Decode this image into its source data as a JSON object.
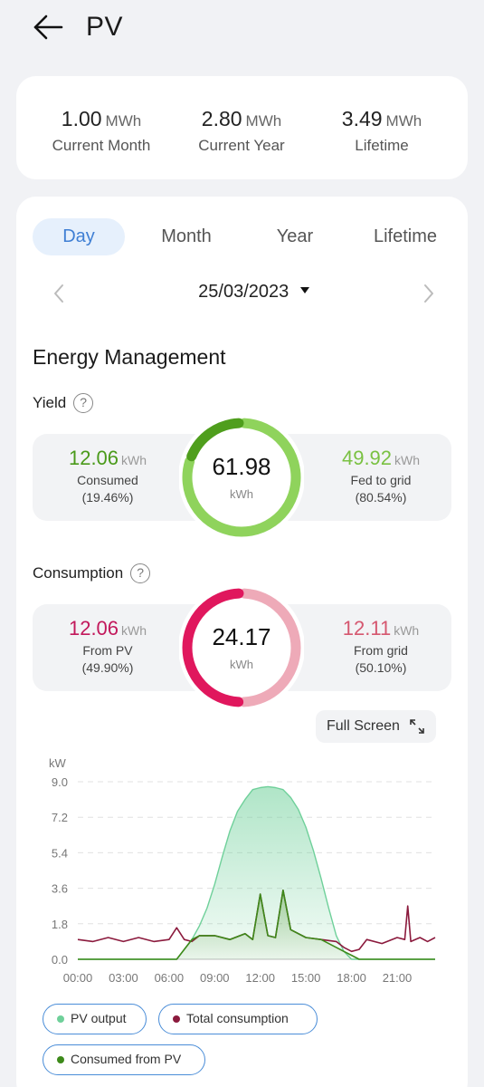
{
  "header": {
    "title": "PV"
  },
  "summary": [
    {
      "value": "1.00",
      "unit": "MWh",
      "label": "Current Month"
    },
    {
      "value": "2.80",
      "unit": "MWh",
      "label": "Current Year"
    },
    {
      "value": "3.49",
      "unit": "MWh",
      "label": "Lifetime"
    }
  ],
  "tabs": [
    "Day",
    "Month",
    "Year",
    "Lifetime"
  ],
  "active_tab": "Day",
  "date": "25/03/2023",
  "section_title": "Energy Management",
  "yield": {
    "title": "Yield",
    "total": "61.98",
    "unit": "kWh",
    "left": {
      "value": "12.06",
      "unit": "kWh",
      "label": "Consumed",
      "pct": "(19.46%)",
      "color": "#4a9a1a"
    },
    "right": {
      "value": "49.92",
      "unit": "kWh",
      "label": "Fed to grid",
      "pct": "(80.54%)",
      "color": "#7ac142"
    },
    "ring_fraction_left": 0.1946,
    "colors": {
      "dark": "#4f9e1d",
      "light": "#8fd35c"
    }
  },
  "consumption": {
    "title": "Consumption",
    "total": "24.17",
    "unit": "kWh",
    "left": {
      "value": "12.06",
      "unit": "kWh",
      "label": "From PV",
      "pct": "(49.90%)",
      "color": "#c2185b"
    },
    "right": {
      "value": "12.11",
      "unit": "kWh",
      "label": "From grid",
      "pct": "(50.10%)",
      "color": "#d5576f"
    },
    "ring_fraction_left": 0.499,
    "colors": {
      "dark": "#e0175d",
      "light": "#eeaab8"
    }
  },
  "full_screen_label": "Full Screen",
  "legend": [
    {
      "label": "PV output",
      "color": "#6fd09a"
    },
    {
      "label": "Total consumption",
      "color": "#8b1a3d"
    },
    {
      "label": "Consumed from PV",
      "color": "#3d8a1a"
    }
  ],
  "chart_data": {
    "type": "line",
    "ylabel": "kW",
    "yticks": [
      "9.0",
      "7.2",
      "5.4",
      "3.6",
      "1.8",
      "0.0"
    ],
    "ylim": [
      0,
      9
    ],
    "xticks": [
      "00:00",
      "03:00",
      "06:00",
      "09:00",
      "12:00",
      "15:00",
      "18:00",
      "21:00"
    ],
    "xlim": [
      0,
      23.5
    ],
    "grid": true,
    "series": [
      {
        "name": "PV output",
        "x": [
          0,
          6.5,
          7,
          7.5,
          8,
          8.5,
          9,
          9.5,
          10,
          10.5,
          11,
          11.5,
          12,
          12.5,
          13,
          13.5,
          14,
          14.5,
          15,
          15.5,
          16,
          16.5,
          17,
          17.5,
          18,
          23.5
        ],
        "y": [
          0,
          0,
          0.5,
          1.0,
          1.7,
          2.6,
          3.8,
          5.2,
          6.5,
          7.5,
          8.1,
          8.6,
          8.7,
          8.75,
          8.7,
          8.6,
          8.2,
          7.6,
          6.7,
          5.5,
          4.1,
          2.6,
          1.2,
          0.4,
          0,
          0
        ]
      },
      {
        "name": "Total consumption",
        "x": [
          0,
          1,
          2,
          3,
          4,
          5,
          6,
          6.5,
          7,
          7.5,
          8,
          9,
          10,
          11,
          11.5,
          12,
          12.5,
          13,
          13.5,
          14,
          15,
          16,
          17,
          17.5,
          18,
          18.5,
          19,
          20,
          21,
          21.5,
          21.7,
          21.9,
          22.5,
          23,
          23.5
        ],
        "y": [
          1.0,
          0.9,
          1.1,
          0.9,
          1.1,
          0.9,
          1.0,
          1.6,
          1.0,
          0.9,
          1.2,
          1.2,
          1.0,
          1.3,
          1.0,
          3.3,
          1.2,
          1.1,
          3.5,
          1.5,
          1.1,
          1.0,
          0.9,
          0.6,
          0.4,
          0.5,
          1.0,
          0.8,
          1.1,
          1.0,
          2.7,
          0.9,
          1.1,
          0.9,
          1.1
        ]
      },
      {
        "name": "Consumed from PV",
        "x": [
          0,
          6.5,
          7,
          7.5,
          8,
          9,
          10,
          11,
          11.5,
          12,
          12.5,
          13,
          13.5,
          14,
          15,
          16,
          17,
          17.5,
          18,
          18.5,
          23.5
        ],
        "y": [
          0,
          0,
          0.5,
          1.0,
          1.2,
          1.2,
          1.0,
          1.3,
          1.0,
          3.3,
          1.2,
          1.1,
          3.5,
          1.5,
          1.1,
          1.0,
          0.6,
          0.4,
          0.2,
          0,
          0
        ]
      }
    ]
  }
}
